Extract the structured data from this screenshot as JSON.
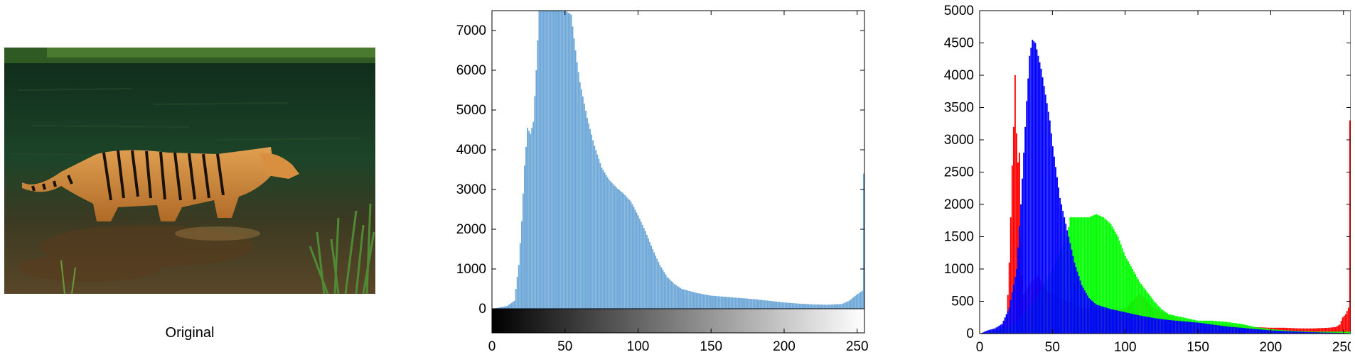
{
  "photo": {
    "caption": "Original",
    "colors": {
      "water_dark": "#12301f",
      "water_mid": "#1f4a2b",
      "tiger": "#d08838",
      "stripe": "#1a1208",
      "grass": "#3f7a2e",
      "bank": "#6b5a3a"
    }
  },
  "chart_data": [
    {
      "type": "bar",
      "title": "",
      "xlabel": "",
      "ylabel": "",
      "xlim": [
        0,
        255
      ],
      "ylim": [
        0,
        7500
      ],
      "xticks": [
        0,
        50,
        100,
        150,
        200,
        250
      ],
      "yticks": [
        0,
        1000,
        2000,
        3000,
        4000,
        5000,
        6000,
        7000
      ],
      "colorbar": "gray",
      "series": [
        {
          "color": "#6ea8d8",
          "points": [
            [
              0,
              0
            ],
            [
              10,
              70
            ],
            [
              15,
              200
            ],
            [
              18,
              1100
            ],
            [
              20,
              2200
            ],
            [
              22,
              3600
            ],
            [
              24,
              4550
            ],
            [
              26,
              4400
            ],
            [
              28,
              4700
            ],
            [
              30,
              6000
            ],
            [
              32,
              7500
            ],
            [
              35,
              7500
            ],
            [
              40,
              7500
            ],
            [
              45,
              7500
            ],
            [
              50,
              7500
            ],
            [
              54,
              7400
            ],
            [
              56,
              6800
            ],
            [
              58,
              6200
            ],
            [
              60,
              5700
            ],
            [
              65,
              4800
            ],
            [
              70,
              4100
            ],
            [
              75,
              3550
            ],
            [
              80,
              3250
            ],
            [
              85,
              3050
            ],
            [
              90,
              2900
            ],
            [
              95,
              2700
            ],
            [
              100,
              2350
            ],
            [
              105,
              1950
            ],
            [
              110,
              1500
            ],
            [
              115,
              1100
            ],
            [
              120,
              800
            ],
            [
              125,
              620
            ],
            [
              130,
              500
            ],
            [
              140,
              400
            ],
            [
              150,
              330
            ],
            [
              160,
              300
            ],
            [
              170,
              270
            ],
            [
              180,
              240
            ],
            [
              190,
              200
            ],
            [
              200,
              160
            ],
            [
              210,
              130
            ],
            [
              220,
              110
            ],
            [
              230,
              100
            ],
            [
              240,
              120
            ],
            [
              245,
              200
            ],
            [
              250,
              350
            ],
            [
              254,
              450
            ],
            [
              255,
              3400
            ]
          ]
        }
      ]
    },
    {
      "type": "bar",
      "title": "",
      "xlabel": "",
      "ylabel": "",
      "xlim": [
        0,
        255
      ],
      "ylim": [
        0,
        5000
      ],
      "xticks": [
        0,
        50,
        100,
        150,
        200,
        250
      ],
      "yticks": [
        0,
        500,
        1000,
        1500,
        2000,
        2500,
        3000,
        3500,
        4000,
        4500,
        5000
      ],
      "series": [
        {
          "color": "#ff0000",
          "points": [
            [
              0,
              0
            ],
            [
              15,
              80
            ],
            [
              18,
              250
            ],
            [
              19,
              600
            ],
            [
              20,
              1100
            ],
            [
              21,
              1800
            ],
            [
              22,
              2600
            ],
            [
              23,
              3200
            ],
            [
              24,
              4000
            ],
            [
              25,
              3100
            ],
            [
              26,
              2650
            ],
            [
              27,
              2800
            ],
            [
              28,
              1500
            ],
            [
              29,
              900
            ],
            [
              30,
              600
            ],
            [
              35,
              800
            ],
            [
              40,
              900
            ],
            [
              45,
              700
            ],
            [
              50,
              600
            ],
            [
              60,
              500
            ],
            [
              70,
              400
            ],
            [
              80,
              400
            ],
            [
              90,
              350
            ],
            [
              100,
              400
            ],
            [
              105,
              500
            ],
            [
              110,
              620
            ],
            [
              112,
              570
            ],
            [
              115,
              500
            ],
            [
              120,
              400
            ],
            [
              130,
              280
            ],
            [
              140,
              200
            ],
            [
              150,
              170
            ],
            [
              160,
              150
            ],
            [
              170,
              140
            ],
            [
              180,
              120
            ],
            [
              190,
              100
            ],
            [
              200,
              90
            ],
            [
              210,
              90
            ],
            [
              220,
              80
            ],
            [
              230,
              80
            ],
            [
              240,
              90
            ],
            [
              245,
              100
            ],
            [
              248,
              140
            ],
            [
              250,
              250
            ],
            [
              252,
              300
            ],
            [
              254,
              400
            ],
            [
              255,
              3300
            ]
          ]
        },
        {
          "color": "#00ff00",
          "points": [
            [
              0,
              0
            ],
            [
              20,
              100
            ],
            [
              30,
              300
            ],
            [
              40,
              600
            ],
            [
              50,
              1000
            ],
            [
              60,
              1500
            ],
            [
              62,
              1800
            ],
            [
              65,
              1800
            ],
            [
              70,
              1800
            ],
            [
              75,
              1800
            ],
            [
              80,
              1850
            ],
            [
              85,
              1800
            ],
            [
              90,
              1700
            ],
            [
              95,
              1500
            ],
            [
              100,
              1200
            ],
            [
              105,
              1000
            ],
            [
              110,
              800
            ],
            [
              115,
              650
            ],
            [
              120,
              500
            ],
            [
              125,
              380
            ],
            [
              130,
              300
            ],
            [
              140,
              250
            ],
            [
              150,
              200
            ],
            [
              160,
              200
            ],
            [
              170,
              180
            ],
            [
              180,
              150
            ],
            [
              190,
              100
            ],
            [
              200,
              70
            ],
            [
              210,
              50
            ],
            [
              220,
              40
            ],
            [
              230,
              30
            ],
            [
              240,
              30
            ],
            [
              250,
              30
            ],
            [
              255,
              30
            ]
          ]
        },
        {
          "color": "#0000ff",
          "points": [
            [
              0,
              0
            ],
            [
              5,
              50
            ],
            [
              10,
              80
            ],
            [
              15,
              150
            ],
            [
              20,
              400
            ],
            [
              25,
              1000
            ],
            [
              28,
              2000
            ],
            [
              30,
              2800
            ],
            [
              32,
              3600
            ],
            [
              34,
              4300
            ],
            [
              36,
              4550
            ],
            [
              38,
              4500
            ],
            [
              40,
              4300
            ],
            [
              42,
              4100
            ],
            [
              45,
              3700
            ],
            [
              48,
              3300
            ],
            [
              50,
              2900
            ],
            [
              55,
              2100
            ],
            [
              60,
              1600
            ],
            [
              65,
              1100
            ],
            [
              70,
              750
            ],
            [
              75,
              550
            ],
            [
              80,
              450
            ],
            [
              90,
              380
            ],
            [
              100,
              330
            ],
            [
              110,
              280
            ],
            [
              120,
              240
            ],
            [
              130,
              210
            ],
            [
              140,
              190
            ],
            [
              150,
              170
            ],
            [
              160,
              140
            ],
            [
              170,
              110
            ],
            [
              180,
              90
            ],
            [
              190,
              70
            ],
            [
              200,
              50
            ],
            [
              210,
              40
            ],
            [
              220,
              30
            ],
            [
              230,
              20
            ],
            [
              240,
              15
            ],
            [
              250,
              10
            ],
            [
              255,
              5
            ]
          ]
        }
      ]
    }
  ]
}
